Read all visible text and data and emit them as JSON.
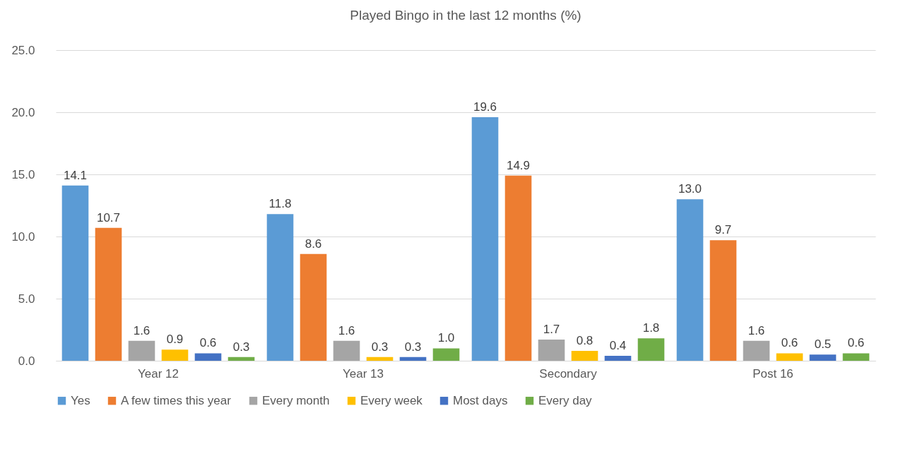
{
  "chart_data": {
    "type": "bar",
    "title": "Played Bingo in the last 12 months (%)",
    "categories": [
      "Year 12",
      "Year 13",
      "Secondary",
      "Post 16"
    ],
    "series": [
      {
        "name": "Yes",
        "color": "#5b9bd5",
        "values": [
          14.1,
          11.8,
          19.6,
          13.0
        ],
        "value_labels": [
          "14.1",
          "11.8",
          "19.6",
          "13.0"
        ]
      },
      {
        "name": "A few times this year",
        "color": "#ed7d31",
        "values": [
          10.7,
          8.6,
          14.9,
          9.7
        ],
        "value_labels": [
          "10.7",
          "8.6",
          "14.9",
          "9.7"
        ]
      },
      {
        "name": "Every month",
        "color": "#a5a5a5",
        "values": [
          1.6,
          1.6,
          1.7,
          1.6
        ],
        "value_labels": [
          "1.6",
          "1.6",
          "1.7",
          "1.6"
        ]
      },
      {
        "name": "Every week",
        "color": "#ffc000",
        "values": [
          0.9,
          0.3,
          0.8,
          0.6
        ],
        "value_labels": [
          "0.9",
          "0.3",
          "0.8",
          "0.6"
        ]
      },
      {
        "name": "Most days",
        "color": "#4472c4",
        "values": [
          0.6,
          0.3,
          0.4,
          0.5
        ],
        "value_labels": [
          "0.6",
          "0.3",
          "0.4",
          "0.5"
        ]
      },
      {
        "name": "Every day",
        "color": "#70ad47",
        "values": [
          0.3,
          1.0,
          1.8,
          0.6
        ],
        "value_labels": [
          "0.3",
          "1.0",
          "1.8",
          "0.6"
        ]
      }
    ],
    "ylim": [
      0,
      25
    ],
    "yticks": [
      {
        "value": 0,
        "label": "0.0"
      },
      {
        "value": 5,
        "label": "5.0"
      },
      {
        "value": 10,
        "label": "10.0"
      },
      {
        "value": 15,
        "label": "15.0"
      },
      {
        "value": 20,
        "label": "20.0"
      },
      {
        "value": 25,
        "label": "25.0"
      }
    ],
    "grid": "y",
    "legend": "bottom"
  }
}
